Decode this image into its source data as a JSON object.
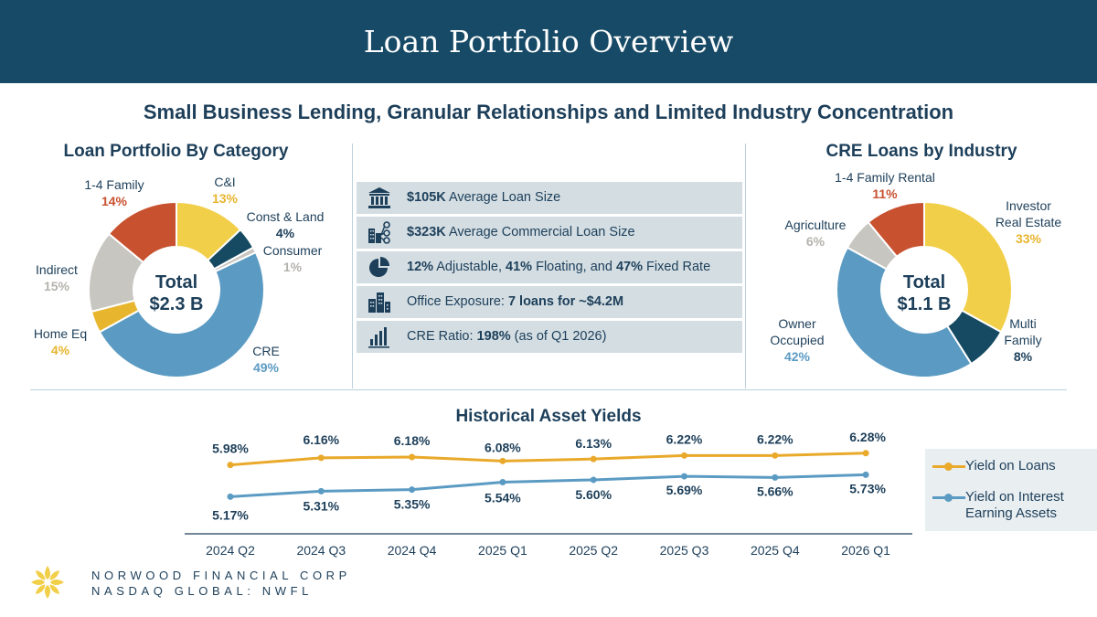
{
  "header": {
    "title": "Loan Portfolio Overview"
  },
  "subtitle": "Small Business Lending, Granular Relationships and Limited Industry Concentration",
  "colors": {
    "header_bg": "#174a66",
    "navy": "#1d3f5a",
    "yellow": "#f2cf49",
    "orange_red": "#c8512f",
    "gray": "#c8c6c1",
    "blue": "#5b9bc3",
    "dark_teal": "#164a63",
    "stat_bg": "#d3dde2",
    "loans_line": "#e9a92b",
    "assets_line": "#5b9bc3"
  },
  "stats": [
    {
      "icon": "bank-icon",
      "bold": "$105K",
      "text": " Average Loan Size"
    },
    {
      "icon": "network-buildings-icon",
      "bold": "$323K",
      "text": " Average Commercial Loan Size"
    },
    {
      "icon": "pie-chart-icon",
      "parts": [
        "12%",
        " Adjustable, ",
        "41%",
        " Floating, and ",
        "47%",
        " Fixed Rate"
      ]
    },
    {
      "icon": "office-buildings-icon",
      "text": "Office Exposure: ",
      "bold": "7 loans for ~$4.2M"
    },
    {
      "icon": "bar-chart-icon",
      "text": "CRE Ratio: ",
      "bold": "198%",
      "text2": " (as of Q1 2026)"
    }
  ],
  "footer": {
    "company": "NORWOOD FINANCIAL CORP",
    "exchange": "NASDAQ GLOBAL: NWFL",
    "logo_icon": "flower-logo-icon"
  },
  "chart_data": [
    {
      "type": "pie",
      "title": "Loan  Portfolio By Category",
      "center_label": [
        "Total",
        "$2.3 B"
      ],
      "slices": [
        {
          "label": "C&I",
          "value": 13,
          "pct_label": "13%",
          "color": "#f2cf49",
          "label_color": "#1d3f5a",
          "pct_color": "#e8b52e"
        },
        {
          "label": "Const & Land",
          "value": 4,
          "pct_label": "4%",
          "color": "#164a63",
          "label_color": "#1d3f5a",
          "pct_color": "#1d3f5a"
        },
        {
          "label": "Consumer",
          "value": 1,
          "pct_label": "1%",
          "color": "#c8c6c1",
          "label_color": "#1d3f5a",
          "pct_color": "#b5b3ae"
        },
        {
          "label": "CRE",
          "value": 49,
          "pct_label": "49%",
          "color": "#5b9bc3",
          "label_color": "#1d3f5a",
          "pct_color": "#5b9bc3"
        },
        {
          "label": "Home Eq",
          "value": 4,
          "pct_label": "4%",
          "color": "#e8b52e",
          "label_color": "#1d3f5a",
          "pct_color": "#e8b52e"
        },
        {
          "label": "Indirect",
          "value": 15,
          "pct_label": "15%",
          "color": "#c8c6c1",
          "label_color": "#1d3f5a",
          "pct_color": "#b5b3ae"
        },
        {
          "label": "1-4 Family",
          "value": 14,
          "pct_label": "14%",
          "color": "#c8512f",
          "label_color": "#1d3f5a",
          "pct_color": "#c8512f"
        }
      ]
    },
    {
      "type": "pie",
      "title": "CRE Loans by Industry",
      "center_label": [
        "Total",
        "$1.1 B"
      ],
      "slices": [
        {
          "label": "Investor Real Estate",
          "lines": [
            "Investor",
            "Real Estate"
          ],
          "value": 33,
          "pct_label": "33%",
          "color": "#f2cf49",
          "pct_color": "#e8b52e"
        },
        {
          "label": "Multi Family",
          "lines": [
            "Multi",
            "Family"
          ],
          "value": 8,
          "pct_label": "8%",
          "color": "#164a63",
          "pct_color": "#1d3f5a"
        },
        {
          "label": "Owner Occupied",
          "lines": [
            "Owner",
            "Occupied"
          ],
          "value": 42,
          "pct_label": "42%",
          "color": "#5b9bc3",
          "pct_color": "#5b9bc3"
        },
        {
          "label": "Agriculture",
          "lines": [
            "Agriculture"
          ],
          "value": 6,
          "pct_label": "6%",
          "color": "#c8c6c1",
          "pct_color": "#b5b3ae"
        },
        {
          "label": "1-4 Family Rental",
          "lines": [
            "1-4 Family Rental"
          ],
          "value": 11,
          "pct_label": "11%",
          "color": "#c8512f",
          "pct_color": "#c8512f"
        }
      ]
    },
    {
      "type": "line",
      "title": "Historical Asset Yields",
      "categories": [
        "2024 Q2",
        "2024 Q3",
        "2024 Q4",
        "2025 Q1",
        "2025 Q2",
        "2025 Q3",
        "2025 Q4",
        "2026 Q1"
      ],
      "series": [
        {
          "name": "Yield on Loans",
          "values": [
            5.98,
            6.16,
            6.18,
            6.08,
            6.13,
            6.22,
            6.22,
            6.28
          ],
          "labels": [
            "5.98%",
            "6.16%",
            "6.18%",
            "6.08%",
            "6.13%",
            "6.22%",
            "6.22%",
            "6.28%"
          ],
          "color": "#e9a92b"
        },
        {
          "name": "Yield on Interest Earning Assets",
          "values": [
            5.17,
            5.31,
            5.35,
            5.54,
            5.6,
            5.69,
            5.66,
            5.73
          ],
          "labels": [
            "5.17%",
            "5.31%",
            "5.35%",
            "5.54%",
            "5.60%",
            "5.69%",
            "5.66%",
            "5.73%"
          ],
          "color": "#5b9bc3"
        }
      ],
      "legend": "right",
      "grid": false
    }
  ]
}
